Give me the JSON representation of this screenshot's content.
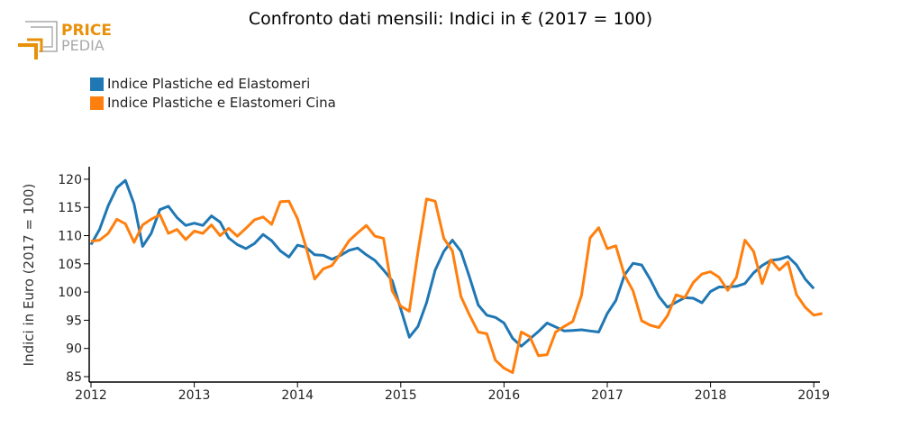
{
  "logo": {
    "text_top": "PRICE",
    "text_bottom": "PEDIA"
  },
  "colors": {
    "series1": "#1f77b4",
    "series2": "#ff7f0e",
    "logo_orange": "#e8900a",
    "logo_gray": "#aaaaaa"
  },
  "chart_data": {
    "type": "line",
    "title": "Confronto dati mensili: Indici in € (2017 = 100)",
    "ylabel": "Indici in Euro (2017 = 100)",
    "xlabel": "",
    "x_start": "2012-01",
    "x_step": "month",
    "xlim": [
      2012,
      2019.1
    ],
    "ylim": [
      84,
      122
    ],
    "xticks": [
      "2012",
      "2013",
      "2014",
      "2015",
      "2016",
      "2017",
      "2018",
      "2019"
    ],
    "yticks": [
      "85",
      "90",
      "95",
      "100",
      "105",
      "110",
      "115",
      "120"
    ],
    "legend_position": "top-left",
    "series": [
      {
        "name": "Indice Plastiche ed Elastomeri",
        "values": [
          108.4,
          111.1,
          115.3,
          118.5,
          119.8,
          115.6,
          108.1,
          110.4,
          114.6,
          115.2,
          113.2,
          111.8,
          112.2,
          111.8,
          113.5,
          112.4,
          109.6,
          108.4,
          107.7,
          108.6,
          110.2,
          109.1,
          107.3,
          106.2,
          108.3,
          107.9,
          106.6,
          106.5,
          105.8,
          106.5,
          107.4,
          107.8,
          106.6,
          105.6,
          103.9,
          102.0,
          97.0,
          92.0,
          93.9,
          98.1,
          103.9,
          107.2,
          109.2,
          107.2,
          102.6,
          97.7,
          95.9,
          95.5,
          94.5,
          91.8,
          90.4,
          91.7,
          93.0,
          94.5,
          93.8,
          93.1,
          93.2,
          93.3,
          93.1,
          92.9,
          96.2,
          98.5,
          103.0,
          105.1,
          104.8,
          102.2,
          99.2,
          97.3,
          98.2,
          99.0,
          98.9,
          98.1,
          100.1,
          100.9,
          100.9,
          101.0,
          101.5,
          103.4,
          104.7,
          105.6,
          105.8,
          106.3,
          104.8,
          102.3,
          100.6
        ]
      },
      {
        "name": "Indice Plastiche e Elastomeri Cina",
        "values": [
          109.0,
          109.2,
          110.4,
          112.9,
          112.1,
          108.8,
          111.9,
          112.9,
          113.7,
          110.4,
          111.1,
          109.3,
          110.8,
          110.4,
          111.9,
          110.0,
          111.3,
          109.9,
          111.3,
          112.8,
          113.3,
          112.0,
          116.0,
          116.1,
          113.0,
          107.9,
          102.3,
          104.1,
          104.7,
          106.8,
          109.1,
          110.5,
          111.8,
          109.9,
          109.5,
          100.2,
          97.5,
          96.6,
          107.1,
          116.5,
          116.1,
          109.5,
          107.3,
          99.2,
          95.9,
          92.9,
          92.6,
          87.9,
          86.5,
          85.7,
          92.9,
          92.1,
          88.7,
          88.9,
          92.9,
          93.9,
          94.8,
          99.4,
          109.6,
          111.4,
          107.7,
          108.2,
          103.0,
          100.2,
          94.9,
          94.1,
          93.7,
          95.8,
          99.5,
          99.0,
          101.7,
          103.2,
          103.6,
          102.6,
          100.3,
          102.6,
          109.2,
          107.2,
          101.5,
          105.7,
          103.9,
          105.3,
          99.5,
          97.3,
          95.9,
          96.2
        ]
      }
    ]
  }
}
